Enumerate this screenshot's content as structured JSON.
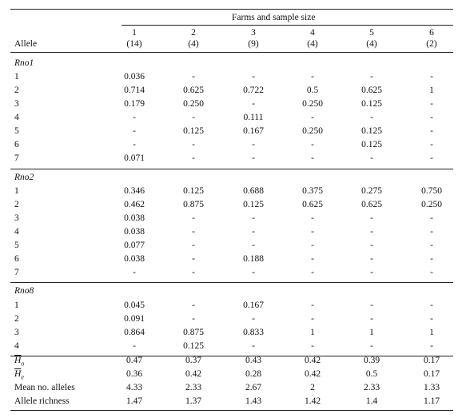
{
  "header": {
    "group_title": "Farms and sample size",
    "allele_label": "Allele",
    "farms": [
      {
        "num": "1",
        "n": "(14)"
      },
      {
        "num": "2",
        "n": "(4)"
      },
      {
        "num": "3",
        "n": "(9)"
      },
      {
        "num": "4",
        "n": "(4)"
      },
      {
        "num": "5",
        "n": "(4)"
      },
      {
        "num": "6",
        "n": "(2)"
      }
    ]
  },
  "loci": [
    {
      "name": "Rno1",
      "rows": [
        {
          "allele": "1",
          "values": [
            "0.036",
            "-",
            "-",
            "-",
            "-",
            "-"
          ]
        },
        {
          "allele": "2",
          "values": [
            "0.714",
            "0.625",
            "0.722",
            "0.5",
            "0.625",
            "1"
          ]
        },
        {
          "allele": "3",
          "values": [
            "0.179",
            "0.250",
            "-",
            "0.250",
            "0.125",
            "-"
          ]
        },
        {
          "allele": "4",
          "values": [
            "-",
            "-",
            "0.111",
            "-",
            "-",
            "-"
          ]
        },
        {
          "allele": "5",
          "values": [
            "-",
            "0.125",
            "0.167",
            "0.250",
            "0.125",
            "-"
          ]
        },
        {
          "allele": "6",
          "values": [
            "-",
            "-",
            "-",
            "-",
            "0.125",
            "-"
          ]
        },
        {
          "allele": "7",
          "values": [
            "0.071",
            "-",
            "-",
            "-",
            "-",
            "-"
          ]
        }
      ]
    },
    {
      "name": "Rno2",
      "rows": [
        {
          "allele": "1",
          "values": [
            "0.346",
            "0.125",
            "0.688",
            "0.375",
            "0.275",
            "0.750"
          ]
        },
        {
          "allele": "2",
          "values": [
            "0.462",
            "0.875",
            "0.125",
            "0.625",
            "0.625",
            "0.250"
          ]
        },
        {
          "allele": "3",
          "values": [
            "0.038",
            "-",
            "-",
            "-",
            "-",
            "-"
          ]
        },
        {
          "allele": "4",
          "values": [
            "0.038",
            "-",
            "-",
            "-",
            "-",
            "-"
          ]
        },
        {
          "allele": "5",
          "values": [
            "0.077",
            "-",
            "-",
            "-",
            "-",
            "-"
          ]
        },
        {
          "allele": "6",
          "values": [
            "0.038",
            "-",
            "0.188",
            "-",
            "-",
            "-"
          ]
        },
        {
          "allele": "7",
          "values": [
            "-",
            "-",
            "-",
            "-",
            "-",
            "-"
          ]
        }
      ]
    },
    {
      "name": "Rno8",
      "rows": [
        {
          "allele": "1",
          "values": [
            "0.045",
            "-",
            "0.167",
            "-",
            "-",
            "-"
          ]
        },
        {
          "allele": "2",
          "values": [
            "0.091",
            "-",
            "-",
            "-",
            "-",
            "-"
          ]
        },
        {
          "allele": "3",
          "values": [
            "0.864",
            "0.875",
            "0.833",
            "1",
            "1",
            "1"
          ]
        },
        {
          "allele": "4",
          "values": [
            "-",
            "0.125",
            "-",
            "-",
            "-",
            "-"
          ]
        }
      ]
    }
  ],
  "summary": [
    {
      "label_main": "H",
      "label_sub": "o",
      "values": [
        "0.47",
        "0.37",
        "0.43",
        "0.42",
        "0.39",
        "0.17"
      ]
    },
    {
      "label_main": "H",
      "label_sub": "e",
      "values": [
        "0.36",
        "0.42",
        "0.28",
        "0.42",
        "0.5",
        "0.17"
      ]
    },
    {
      "label": "Mean no. alleles",
      "values": [
        "4.33",
        "2.33",
        "2.67",
        "2",
        "2.33",
        "1.33"
      ]
    },
    {
      "label": "Allele richness",
      "values": [
        "1.47",
        "1.37",
        "1.43",
        "1.42",
        "1.4",
        "1.17"
      ]
    }
  ]
}
